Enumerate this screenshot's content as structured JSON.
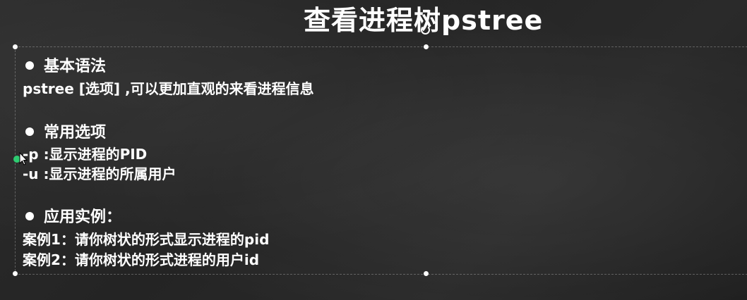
{
  "slide": {
    "title": "查看进程树pstree",
    "sections": [
      {
        "heading": "基本语法",
        "lines": [
          "pstree [选项] ,可以更加直观的来看进程信息"
        ]
      },
      {
        "heading": "常用选项",
        "lines": [
          "-p :显示进程的PID",
          "-u :显示进程的所属用户"
        ]
      },
      {
        "heading": "应用实例：",
        "lines": [
          "案例1：请你树状的形式显示进程的pid",
          "案例2：请你树状的形式进程的用户id"
        ]
      }
    ]
  },
  "colors": {
    "background": "#2a2a2a",
    "text": "#ffffff",
    "cursor_accent": "#2ecc71"
  },
  "icons": {
    "cursor": "pointer-cursor-icon",
    "rotate": "rotate-handle-icon"
  }
}
